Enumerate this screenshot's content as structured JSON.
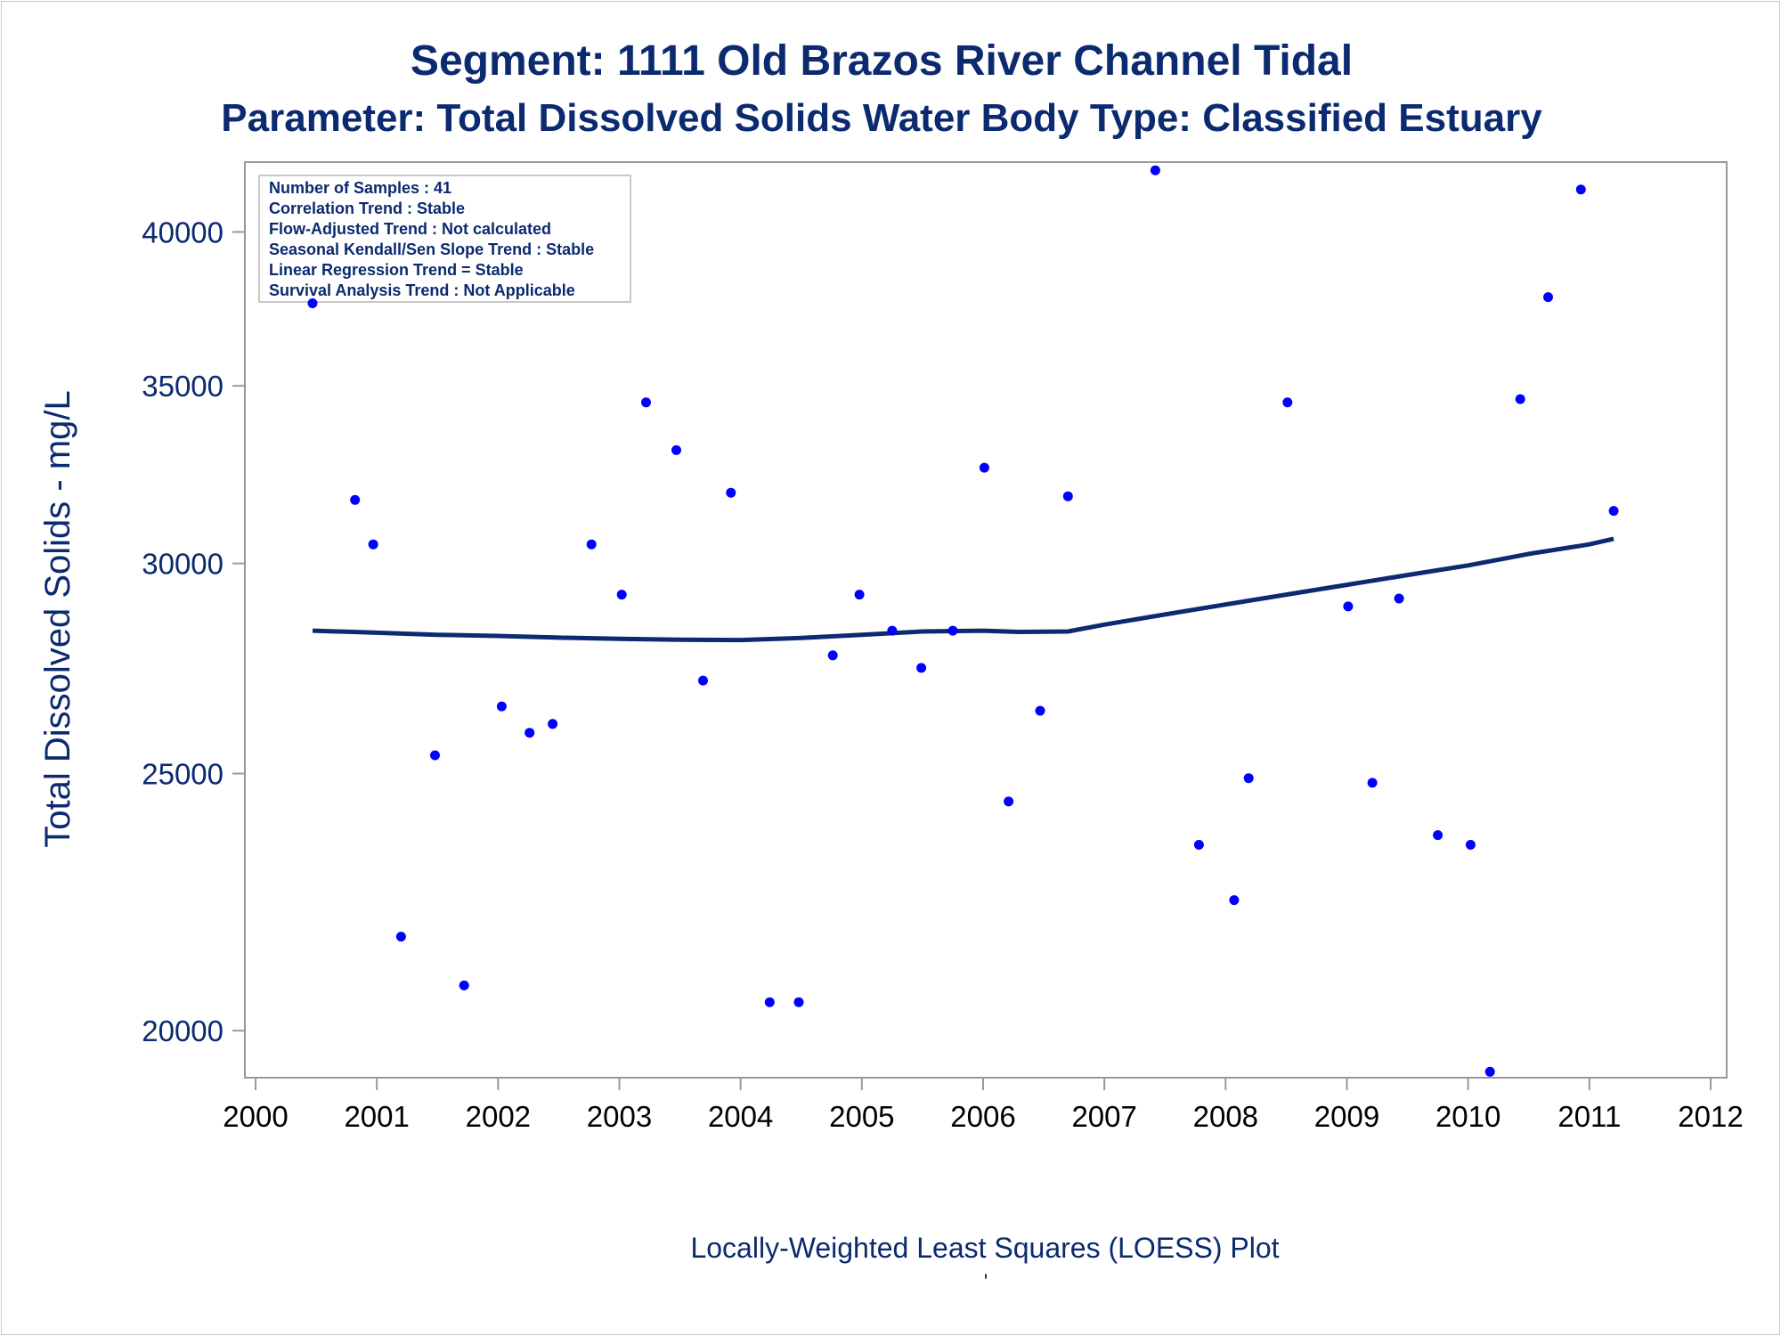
{
  "colors": {
    "title": "#0b2a6f",
    "axis_label": "#0b2a6f",
    "ytick": "#0b2a6f",
    "xtick": "#000000",
    "points": "#0000ff",
    "loess": "#0b2a6f",
    "frame": "#999999",
    "stats_border": "#c8c8c8"
  },
  "chart_data": {
    "type": "scatter",
    "title": "Segment: 1111  Old Brazos River Channel Tidal",
    "subtitle": "Parameter: Total Dissolved Solids   Water Body Type: Classified Estuary",
    "xlabel": "Locally-Weighted Least Squares (LOESS) Plot",
    "ylabel": "Total Dissolved Solids - mg/L",
    "footnote": "'",
    "y_scale": "log",
    "xlim": [
      2000,
      2012
    ],
    "ylim": [
      19200,
      42500
    ],
    "x_ticks": [
      2000,
      2001,
      2002,
      2003,
      2004,
      2005,
      2006,
      2007,
      2008,
      2009,
      2010,
      2011,
      2012
    ],
    "y_ticks": [
      20000,
      25000,
      30000,
      35000,
      40000
    ],
    "grid": false,
    "legend": "none",
    "stats_box": {
      "placement": "top-left",
      "lines": [
        "Number of Samples : 41",
        "Correlation Trend : Stable",
        "Flow-Adjusted Trend : Not calculated",
        "Seasonal Kendall/Sen Slope Trend : Stable",
        "Linear Regression Trend = Stable",
        "Survival Analysis Trend : Not Applicable"
      ]
    },
    "points": [
      {
        "x": 2000.47,
        "y": 37600
      },
      {
        "x": 2000.82,
        "y": 31700
      },
      {
        "x": 2000.97,
        "y": 30500
      },
      {
        "x": 2001.2,
        "y": 21700
      },
      {
        "x": 2001.48,
        "y": 25400
      },
      {
        "x": 2001.72,
        "y": 20800
      },
      {
        "x": 2002.03,
        "y": 26500
      },
      {
        "x": 2002.26,
        "y": 25900
      },
      {
        "x": 2002.45,
        "y": 26100
      },
      {
        "x": 2002.77,
        "y": 30500
      },
      {
        "x": 2003.02,
        "y": 29200
      },
      {
        "x": 2003.22,
        "y": 34500
      },
      {
        "x": 2003.47,
        "y": 33100
      },
      {
        "x": 2003.69,
        "y": 27100
      },
      {
        "x": 2003.92,
        "y": 31900
      },
      {
        "x": 2004.24,
        "y": 20500
      },
      {
        "x": 2004.48,
        "y": 20500
      },
      {
        "x": 2004.76,
        "y": 27700
      },
      {
        "x": 2004.98,
        "y": 29200
      },
      {
        "x": 2005.25,
        "y": 28300
      },
      {
        "x": 2005.49,
        "y": 27400
      },
      {
        "x": 2005.75,
        "y": 28300
      },
      {
        "x": 2006.01,
        "y": 32600
      },
      {
        "x": 2006.21,
        "y": 24400
      },
      {
        "x": 2006.47,
        "y": 26400
      },
      {
        "x": 2006.7,
        "y": 31800
      },
      {
        "x": 2007.42,
        "y": 42200
      },
      {
        "x": 2007.78,
        "y": 23500
      },
      {
        "x": 2008.07,
        "y": 22400
      },
      {
        "x": 2008.19,
        "y": 24900
      },
      {
        "x": 2008.51,
        "y": 34500
      },
      {
        "x": 2009.01,
        "y": 28900
      },
      {
        "x": 2009.21,
        "y": 24800
      },
      {
        "x": 2009.43,
        "y": 29100
      },
      {
        "x": 2009.75,
        "y": 23700
      },
      {
        "x": 2010.02,
        "y": 23500
      },
      {
        "x": 2010.18,
        "y": 19300
      },
      {
        "x": 2010.43,
        "y": 34600
      },
      {
        "x": 2010.66,
        "y": 37800
      },
      {
        "x": 2010.93,
        "y": 41500
      },
      {
        "x": 2011.2,
        "y": 31400
      }
    ],
    "loess_line": [
      {
        "x": 2000.47,
        "y": 28300
      },
      {
        "x": 2001.0,
        "y": 28250
      },
      {
        "x": 2001.5,
        "y": 28200
      },
      {
        "x": 2002.0,
        "y": 28170
      },
      {
        "x": 2002.5,
        "y": 28130
      },
      {
        "x": 2003.0,
        "y": 28100
      },
      {
        "x": 2003.5,
        "y": 28080
      },
      {
        "x": 2004.0,
        "y": 28070
      },
      {
        "x": 2004.5,
        "y": 28120
      },
      {
        "x": 2005.0,
        "y": 28200
      },
      {
        "x": 2005.5,
        "y": 28280
      },
      {
        "x": 2006.0,
        "y": 28300
      },
      {
        "x": 2006.3,
        "y": 28270
      },
      {
        "x": 2006.7,
        "y": 28280
      },
      {
        "x": 2007.0,
        "y": 28450
      },
      {
        "x": 2007.5,
        "y": 28700
      },
      {
        "x": 2008.0,
        "y": 28950
      },
      {
        "x": 2008.5,
        "y": 29200
      },
      {
        "x": 2009.0,
        "y": 29450
      },
      {
        "x": 2009.5,
        "y": 29700
      },
      {
        "x": 2010.0,
        "y": 29950
      },
      {
        "x": 2010.5,
        "y": 30250
      },
      {
        "x": 2011.0,
        "y": 30500
      },
      {
        "x": 2011.2,
        "y": 30650
      }
    ]
  }
}
